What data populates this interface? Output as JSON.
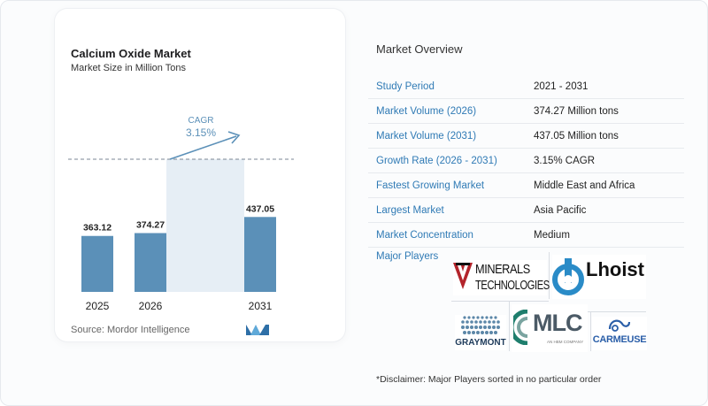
{
  "chart": {
    "title": "Calcium Oxide Market",
    "subtitle": "Market Size in Million Tons",
    "cagr_label": "CAGR",
    "cagr_value": "3.15%",
    "source": "Source:  Mordor Intelligence"
  },
  "chart_data": {
    "type": "bar",
    "title": "Calcium Oxide Market",
    "subtitle": "Market Size in Million Tons",
    "categories": [
      "2025",
      "2026",
      "2031"
    ],
    "values": [
      363.12,
      374.27,
      437.05
    ],
    "value_labels": [
      "363.12",
      "374.27",
      "437.05"
    ],
    "annotation": "CAGR 3.15%",
    "colors": {
      "bar": "#5b90b8",
      "forecast_band": "#e6eef5",
      "arrow": "#5b90b8",
      "cagr_text": "#5b90b8"
    },
    "grid": false
  },
  "overview": {
    "title": "Market Overview",
    "rows": [
      {
        "label": "Study Period",
        "value": "2021 - 2031"
      },
      {
        "label": "Market Volume (2026)",
        "value": "374.27 Million tons"
      },
      {
        "label": "Market Volume (2031)",
        "value": "437.05 Million tons"
      },
      {
        "label": "Growth Rate (2026 - 2031)",
        "value": "3.15% CAGR"
      },
      {
        "label": "Fastest Growing Market",
        "value": "Middle East and Africa"
      },
      {
        "label": "Largest Market",
        "value": "Asia Pacific"
      },
      {
        "label": "Market Concentration",
        "value": "Medium"
      }
    ],
    "players_label": "Major Players",
    "players": [
      {
        "name": "MINERALS TECHNOLOGIES",
        "line1": "MINERALS",
        "line2": "TECHNOLOGIES"
      },
      {
        "name": "Lhoist"
      },
      {
        "name": "GRAYMONT"
      },
      {
        "name": "MLC",
        "tagline": "AN HBM COMPANY"
      },
      {
        "name": "CARMEUSE"
      }
    ],
    "disclaimer": "*Disclaimer: Major Players sorted in no particular order"
  }
}
